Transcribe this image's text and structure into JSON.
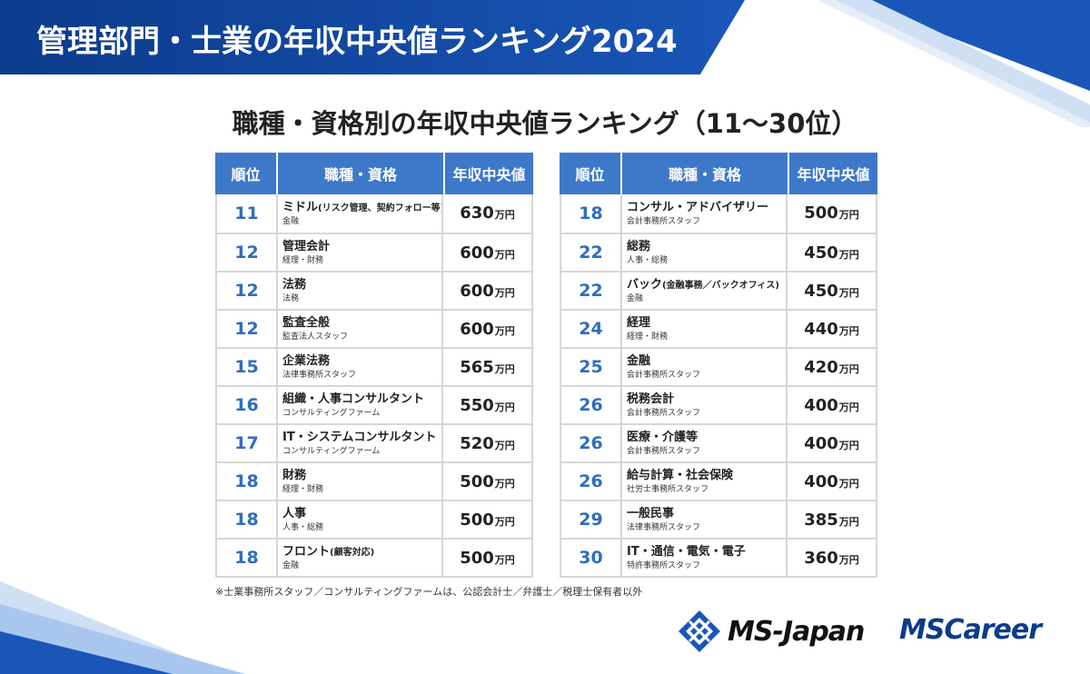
{
  "title": "管理部門・士業の年収中央値ランキング2024",
  "subtitle": "職種・資格別の年収中央値ランキング（11～30位）",
  "headers": {
    "rank": "順位",
    "job": "職種・資格",
    "salary": "年収中央値"
  },
  "unit": "万円",
  "left_rows": [
    {
      "rank": "11",
      "title": "ミドル",
      "title_small": "(リスク管理、契約フォロー等)",
      "sub": "金融",
      "salary": "630"
    },
    {
      "rank": "12",
      "title": "管理会計",
      "title_small": "",
      "sub": "経理・財務",
      "salary": "600"
    },
    {
      "rank": "12",
      "title": "法務",
      "title_small": "",
      "sub": "法務",
      "salary": "600"
    },
    {
      "rank": "12",
      "title": "監査全般",
      "title_small": "",
      "sub": "監査法人スタッフ",
      "salary": "600"
    },
    {
      "rank": "15",
      "title": "企業法務",
      "title_small": "",
      "sub": "法律事務所スタッフ",
      "salary": "565"
    },
    {
      "rank": "16",
      "title": "組織・人事コンサルタント",
      "title_small": "",
      "sub": "コンサルティングファーム",
      "salary": "550"
    },
    {
      "rank": "17",
      "title": "IT・システムコンサルタント",
      "title_small": "",
      "sub": "コンサルティングファーム",
      "salary": "520"
    },
    {
      "rank": "18",
      "title": "財務",
      "title_small": "",
      "sub": "経理・財務",
      "salary": "500"
    },
    {
      "rank": "18",
      "title": "人事",
      "title_small": "",
      "sub": "人事・総務",
      "salary": "500"
    },
    {
      "rank": "18",
      "title": "フロント",
      "title_small": "(顧客対応)",
      "sub": "金融",
      "salary": "500"
    }
  ],
  "right_rows": [
    {
      "rank": "18",
      "title": "コンサル・アドバイザリー",
      "title_small": "",
      "sub": "会計事務所スタッフ",
      "salary": "500"
    },
    {
      "rank": "22",
      "title": "総務",
      "title_small": "",
      "sub": "人事・総務",
      "salary": "450"
    },
    {
      "rank": "22",
      "title": "バック",
      "title_small": "(金融事務／バックオフィス)",
      "sub": "金融",
      "salary": "450"
    },
    {
      "rank": "24",
      "title": "経理",
      "title_small": "",
      "sub": "経理・財務",
      "salary": "440"
    },
    {
      "rank": "25",
      "title": "金融",
      "title_small": "",
      "sub": "会計事務所スタッフ",
      "salary": "420"
    },
    {
      "rank": "26",
      "title": "税務会計",
      "title_small": "",
      "sub": "会計事務所スタッフ",
      "salary": "400"
    },
    {
      "rank": "26",
      "title": "医療・介護等",
      "title_small": "",
      "sub": "会計事務所スタッフ",
      "salary": "400"
    },
    {
      "rank": "26",
      "title": "給与計算・社会保険",
      "title_small": "",
      "sub": "社労士事務所スタッフ",
      "salary": "400"
    },
    {
      "rank": "29",
      "title": "一般民事",
      "title_small": "",
      "sub": "法律事務所スタッフ",
      "salary": "385"
    },
    {
      "rank": "30",
      "title": "IT・通信・電気・電子",
      "title_small": "",
      "sub": "特許事務所スタッフ",
      "salary": "360"
    }
  ],
  "footnote": "※士業事務所スタッフ／コンサルティングファームは、公認会計士／弁護士／税理士保有者以外",
  "logos": {
    "ms_japan": "MS-Japan",
    "ms_career": "MSCareer"
  },
  "colors": {
    "banner": "#0b3b8c",
    "header": "#3d78c9",
    "rank": "#2e6dc0"
  }
}
